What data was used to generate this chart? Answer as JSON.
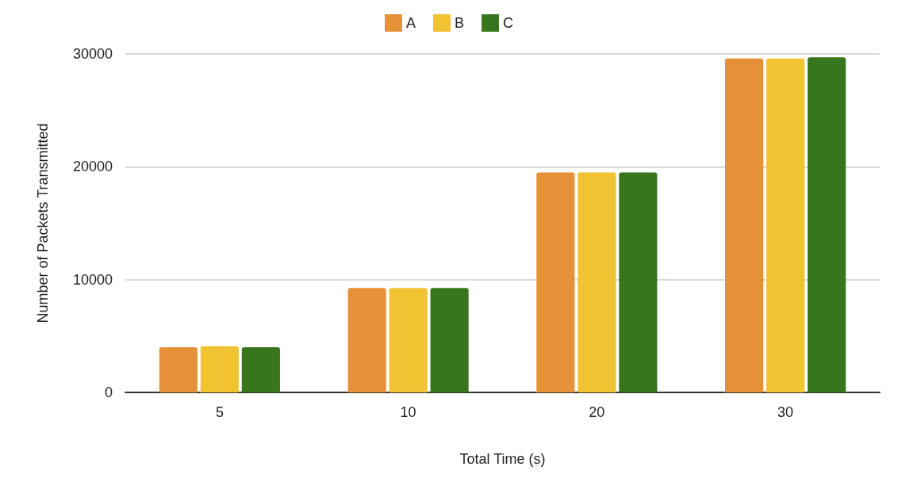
{
  "chart_data": {
    "type": "bar",
    "xlabel": "Total Time (s)",
    "ylabel": "Number of Packets Transmitted",
    "categories": [
      "5",
      "10",
      "20",
      "30"
    ],
    "series": [
      {
        "name": "A",
        "color": "#e69138",
        "values": [
          4000,
          9250,
          19500,
          29600
        ]
      },
      {
        "name": "B",
        "color": "#f1c232",
        "values": [
          4100,
          9250,
          19500,
          29600
        ]
      },
      {
        "name": "C",
        "color": "#38761d",
        "values": [
          4000,
          9250,
          19500,
          29700
        ]
      }
    ],
    "ylim": [
      0,
      30000
    ],
    "yticks": [
      0,
      10000,
      20000,
      30000
    ],
    "grid": "y",
    "legend": "top"
  }
}
